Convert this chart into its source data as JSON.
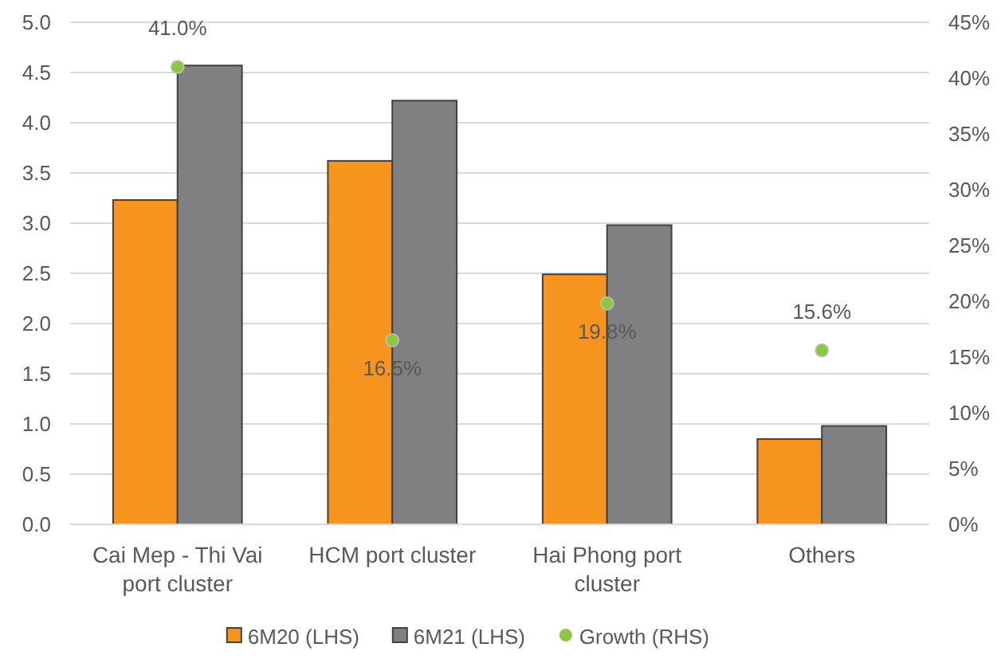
{
  "chart_data": {
    "type": "bar",
    "categories": [
      "Cai Mep - Thi Vai port cluster",
      "HCM port cluster",
      "Hai Phong port cluster",
      "Others"
    ],
    "series": [
      {
        "name": "6M20 (LHS)",
        "color": "#f7941d",
        "values": [
          3.23,
          3.62,
          2.49,
          0.85
        ]
      },
      {
        "name": "6M21 (LHS)",
        "color": "#808083",
        "values": [
          4.57,
          4.22,
          2.98,
          0.98
        ]
      },
      {
        "name": "Growth (RHS)",
        "type": "scatter",
        "axis": "y2",
        "color": "#8dc63f",
        "values": [
          41.0,
          16.5,
          19.8,
          15.6
        ],
        "value_labels": [
          "41.0%",
          "16.5%",
          "19.8%",
          "15.6%"
        ]
      }
    ],
    "ylim": [
      0,
      5
    ],
    "yticks": [
      {
        "value": 0,
        "label": "0.0"
      },
      0.5,
      {
        "value": 1,
        "label": "1.0"
      },
      1.5,
      {
        "value": 2,
        "label": "2.0"
      },
      2.5,
      {
        "value": 3,
        "label": "3.0"
      },
      3.5,
      {
        "value": 4,
        "label": "4.0"
      },
      4.5,
      {
        "value": 5,
        "label": "5.0"
      }
    ],
    "y2lim": [
      0,
      45
    ],
    "y2ticks": [
      {
        "value": 0,
        "label": "0%"
      },
      {
        "value": 5,
        "label": "5%"
      },
      {
        "value": 10,
        "label": "10%"
      },
      {
        "value": 15,
        "label": "15%"
      },
      {
        "value": 20,
        "label": "20%"
      },
      {
        "value": 25,
        "label": "25%"
      },
      {
        "value": 30,
        "label": "30%"
      },
      {
        "value": 35,
        "label": "35%"
      },
      {
        "value": 40,
        "label": "40%"
      },
      {
        "value": 45,
        "label": "45%"
      }
    ],
    "grid": "y",
    "legend": "bottom",
    "marker": "circle"
  }
}
